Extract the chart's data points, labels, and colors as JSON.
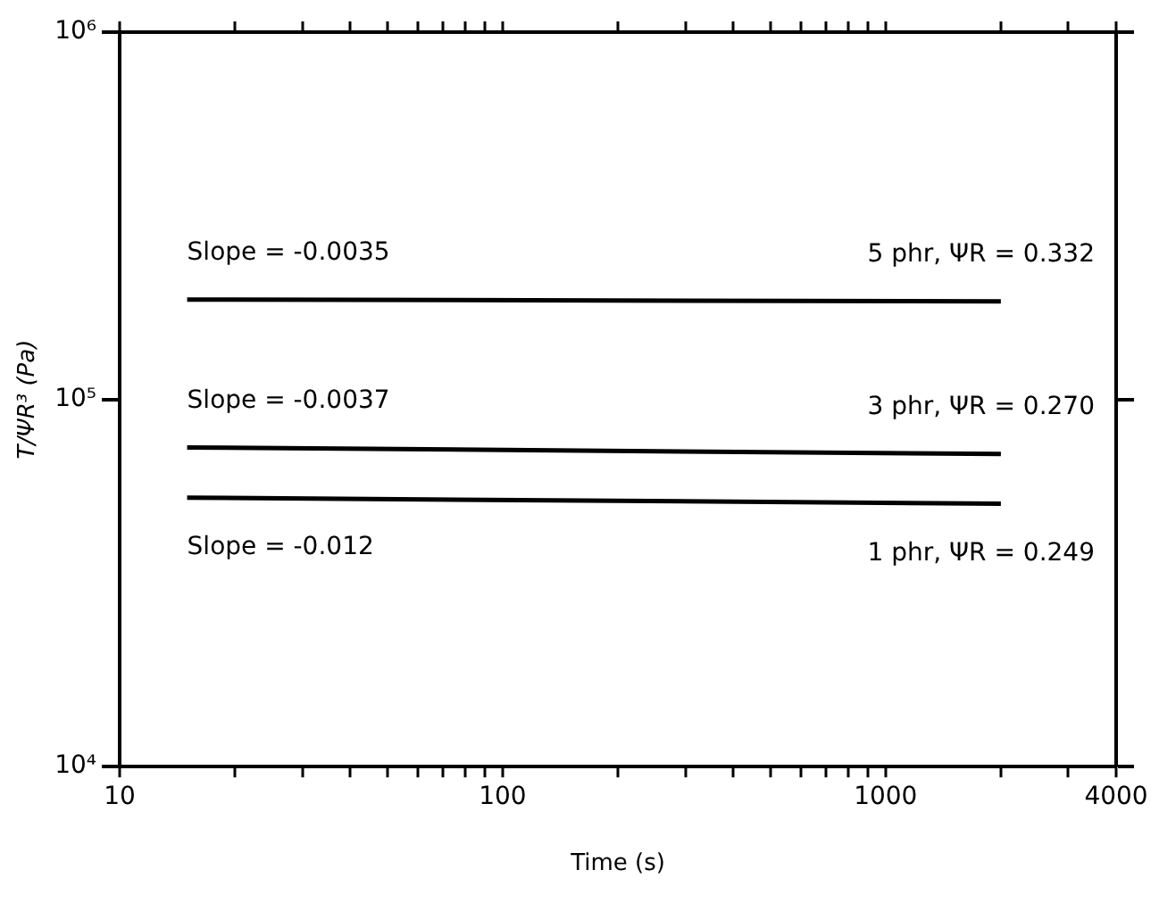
{
  "chart_data": {
    "type": "line",
    "xlabel": "Time (s)",
    "ylabel": "T/ΨR³ (Pa)",
    "log": "xy",
    "grid": false,
    "legend": false,
    "marker": "none",
    "line_style": "solid",
    "xlim": [
      10,
      4000
    ],
    "ylim": [
      10000,
      1000000
    ],
    "xticks": [
      10,
      {
        "value": 20,
        "label": null
      },
      {
        "value": 30,
        "label": null
      },
      {
        "value": 40,
        "label": null
      },
      {
        "value": 50,
        "label": null
      },
      {
        "value": 60,
        "label": null
      },
      {
        "value": 70,
        "label": null
      },
      {
        "value": 80,
        "label": null
      },
      {
        "value": 90,
        "label": null
      },
      100,
      {
        "value": 200,
        "label": null
      },
      {
        "value": 300,
        "label": null
      },
      {
        "value": 400,
        "label": null
      },
      {
        "value": 500,
        "label": null
      },
      {
        "value": 600,
        "label": null
      },
      {
        "value": 700,
        "label": null
      },
      {
        "value": 800,
        "label": null
      },
      {
        "value": 900,
        "label": null
      },
      1000,
      {
        "value": 2000,
        "label": null
      },
      {
        "value": 3000,
        "label": null
      },
      4000
    ],
    "yticks": [
      {
        "value": 10000,
        "label": "10⁴"
      },
      {
        "value": 100000,
        "label": "10⁵"
      },
      {
        "value": 1000000,
        "label": "10⁶"
      }
    ],
    "x": [
      15,
      2000
    ],
    "series": [
      {
        "color": "#000000",
        "values": [
          187000,
          185000
        ]
      },
      {
        "color": "#000000",
        "values": [
          74000,
          71000
        ]
      },
      {
        "color": "#000000",
        "values": [
          54000,
          52000
        ]
      }
    ],
    "annotations": [
      "Slope = -0.0035",
      "5 phr, ΨR = 0.332",
      "Slope = -0.0037",
      "3 phr, ΨR = 0.270",
      "Slope = -0.012",
      "1 phr, ΨR = 0.249"
    ]
  }
}
